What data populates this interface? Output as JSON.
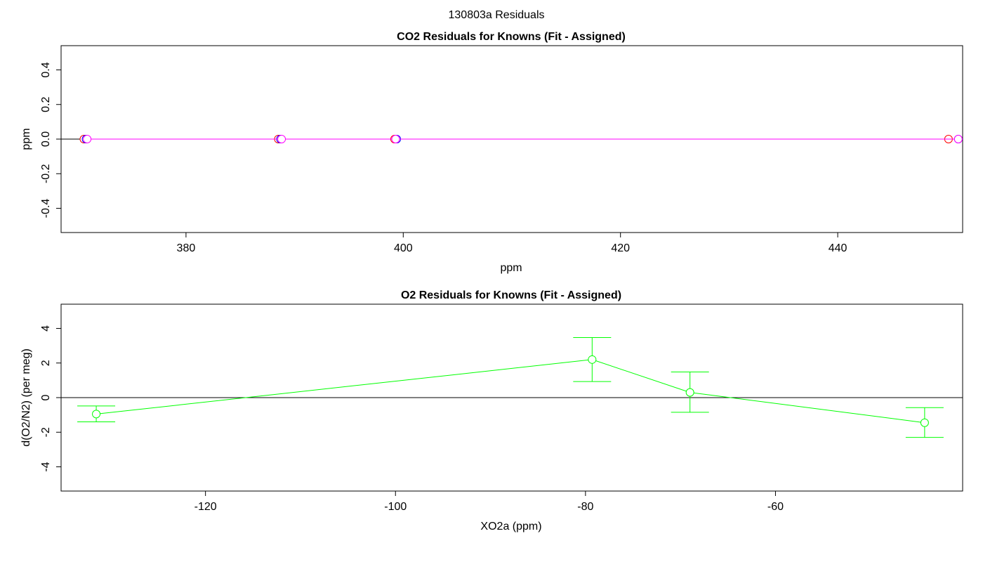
{
  "figure_title": "130803a  Residuals",
  "chart_data": [
    {
      "type": "scatter",
      "title": "CO2 Residuals for Knowns (Fit - Assigned)",
      "xlabel": "ppm",
      "ylabel": "ppm",
      "xlim": [
        368.5,
        451.5
      ],
      "ylim": [
        -0.54,
        0.54
      ],
      "xticks": [
        380,
        400,
        420,
        440
      ],
      "yticks": [
        -0.4,
        -0.2,
        0.0,
        0.2,
        0.4
      ],
      "x_tick_labels": [
        "380",
        "400",
        "420",
        "440"
      ],
      "y_tick_labels": [
        "-0.4",
        "-0.2",
        "0.0",
        "0.2",
        "0.4"
      ],
      "reference_line_y": 0,
      "grid": false,
      "series": [
        {
          "color": "#ff0000",
          "marker": "open-circle",
          "connected": true,
          "x": [
            370.6,
            388.5,
            399.2,
            450.2
          ],
          "y": [
            0.0,
            0.0,
            0.0,
            0.0
          ]
        },
        {
          "color": "#0000ff",
          "marker": "open-circle",
          "connected": true,
          "x": [
            370.8,
            388.7,
            399.4,
            451.1
          ],
          "y": [
            0.0,
            0.0,
            0.0,
            0.0
          ]
        },
        {
          "color": "#ff00ff",
          "marker": "open-circle",
          "connected": true,
          "x": [
            370.9,
            388.8,
            399.3,
            451.1
          ],
          "y": [
            0.0,
            0.0,
            0.0,
            0.0
          ]
        }
      ]
    },
    {
      "type": "line",
      "title": "O2 Residuals for Knowns (Fit - Assigned)",
      "xlabel": "XO2a (ppm)",
      "ylabel": "d(O2/N2) (per meg)",
      "xlim": [
        -135.2,
        -40.3
      ],
      "ylim": [
        -5.4,
        5.4
      ],
      "xticks": [
        -120,
        -100,
        -80,
        -60
      ],
      "yticks": [
        -4,
        -2,
        0,
        2,
        4
      ],
      "x_tick_labels": [
        "-120",
        "-100",
        "-80",
        "-60"
      ],
      "y_tick_labels": [
        "-4",
        "-2",
        "0",
        "2",
        "4"
      ],
      "reference_line_y": 0,
      "grid": false,
      "series": [
        {
          "color": "#00ff00",
          "marker": "open-circle",
          "connected": true,
          "error_bars": true,
          "x": [
            -131.5,
            -79.3,
            -69.0,
            -44.3
          ],
          "y": [
            -0.95,
            2.2,
            0.3,
            -1.45
          ],
          "y_low": [
            -1.4,
            0.93,
            -0.85,
            -2.3
          ],
          "y_high": [
            -0.48,
            3.47,
            1.48,
            -0.58
          ]
        }
      ]
    }
  ]
}
